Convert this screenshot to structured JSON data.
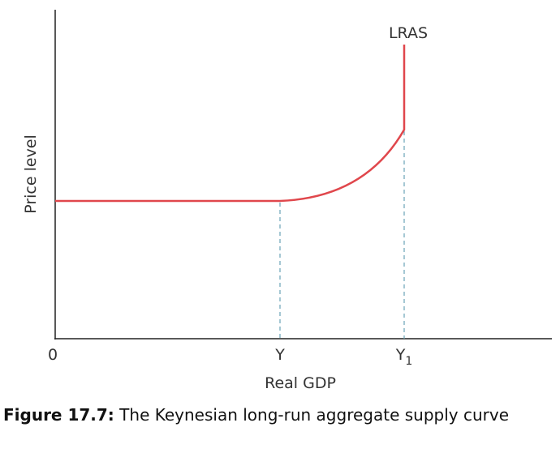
{
  "diagram": {
    "y_axis_label": "Price level",
    "x_axis_label": "Real GDP",
    "origin_label": "0",
    "x_marks": [
      {
        "base": "Y"
      },
      {
        "base": "Y",
        "subscript": "1"
      }
    ],
    "curve_label": "LRAS"
  },
  "caption": {
    "number": "Figure 17.7:",
    "text": "The Keynesian long-run aggregate supply curve"
  }
}
